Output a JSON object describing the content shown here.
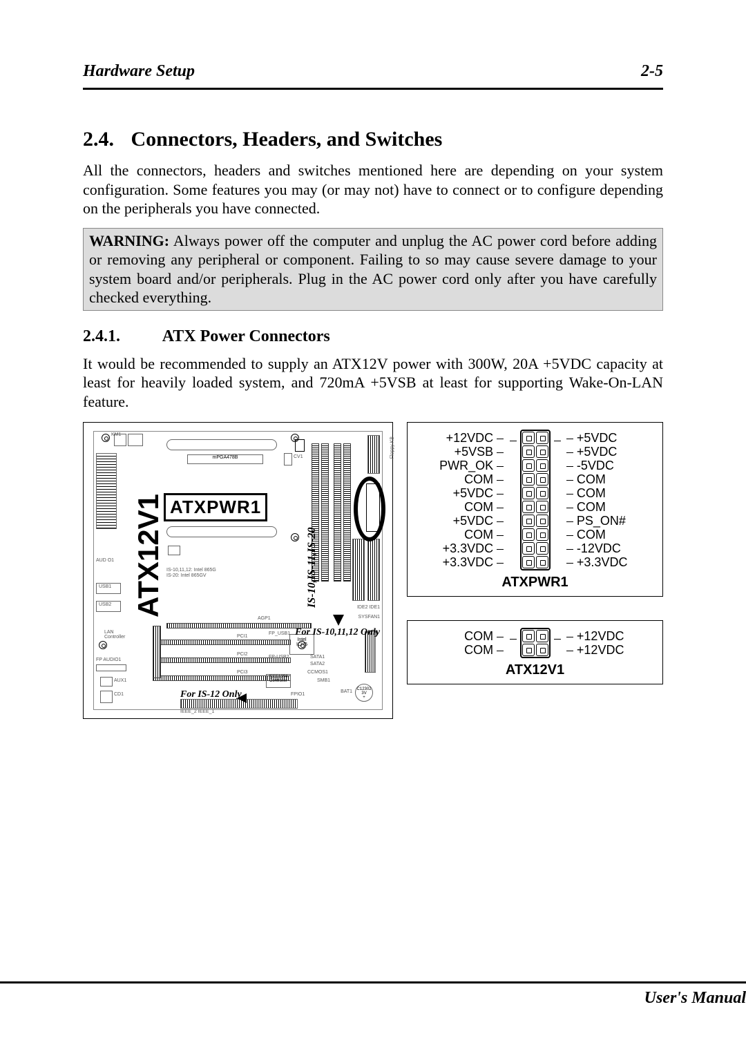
{
  "header": {
    "left": "Hardware Setup",
    "right": "2-5"
  },
  "section": {
    "num": "2.4.",
    "title": "Connectors, Headers, and Switches"
  },
  "para1": "All the connectors, headers and switches mentioned here are depending on your system configuration. Some features you may (or may not) have to connect or to configure depending on the peripherals you have connected.",
  "warning_label": "WARNING:",
  "warning_text": " Always power off the computer and unplug the AC power cord before adding or removing any peripheral or component. Failing to so may cause severe damage to your system board and/or peripherals. Plug in the AC power cord only after you have carefully checked everything.",
  "subsection": {
    "num": "2.4.1.",
    "title": "ATX Power Connectors"
  },
  "para2": "It would be recommended to supply an ATX12V power with 300W, 20A +5VDC capacity at least for heavily loaded system, and 720mA +5VSB at least for supporting Wake-On-LAN feature.",
  "board": {
    "atxpwr_label": "ATXPWR1",
    "atx12v_label": "ATX12V1",
    "is_label": "IS-10,IS-11,IS-20",
    "note_right": "For IS-10,11,12 Only",
    "note_bottom": "For IS-12 Only",
    "cputxt": "IS-10,11,12: Intel 865G\nIS-20: Intel 865GV",
    "ich": "Intel\nICH5"
  },
  "atxpwr1": {
    "title": "ATXPWR1",
    "rows": [
      {
        "l": "+12VDC",
        "r": "+5VDC"
      },
      {
        "l": "+5VSB",
        "r": "+5VDC"
      },
      {
        "l": "PWR_OK",
        "r": "-5VDC"
      },
      {
        "l": "COM",
        "r": "COM"
      },
      {
        "l": "+5VDC",
        "r": "COM"
      },
      {
        "l": "COM",
        "r": "COM"
      },
      {
        "l": "+5VDC",
        "r": "PS_ON#"
      },
      {
        "l": "COM",
        "r": "COM"
      },
      {
        "l": "+3.3VDC",
        "r": "-12VDC"
      },
      {
        "l": "+3.3VDC",
        "r": "+3.3VDC"
      }
    ]
  },
  "atx12v1": {
    "title": "ATX12V1",
    "rows": [
      {
        "l": "COM",
        "r": "+12VDC"
      },
      {
        "l": "COM",
        "r": "+12VDC"
      }
    ]
  },
  "footer": "User's Manual"
}
